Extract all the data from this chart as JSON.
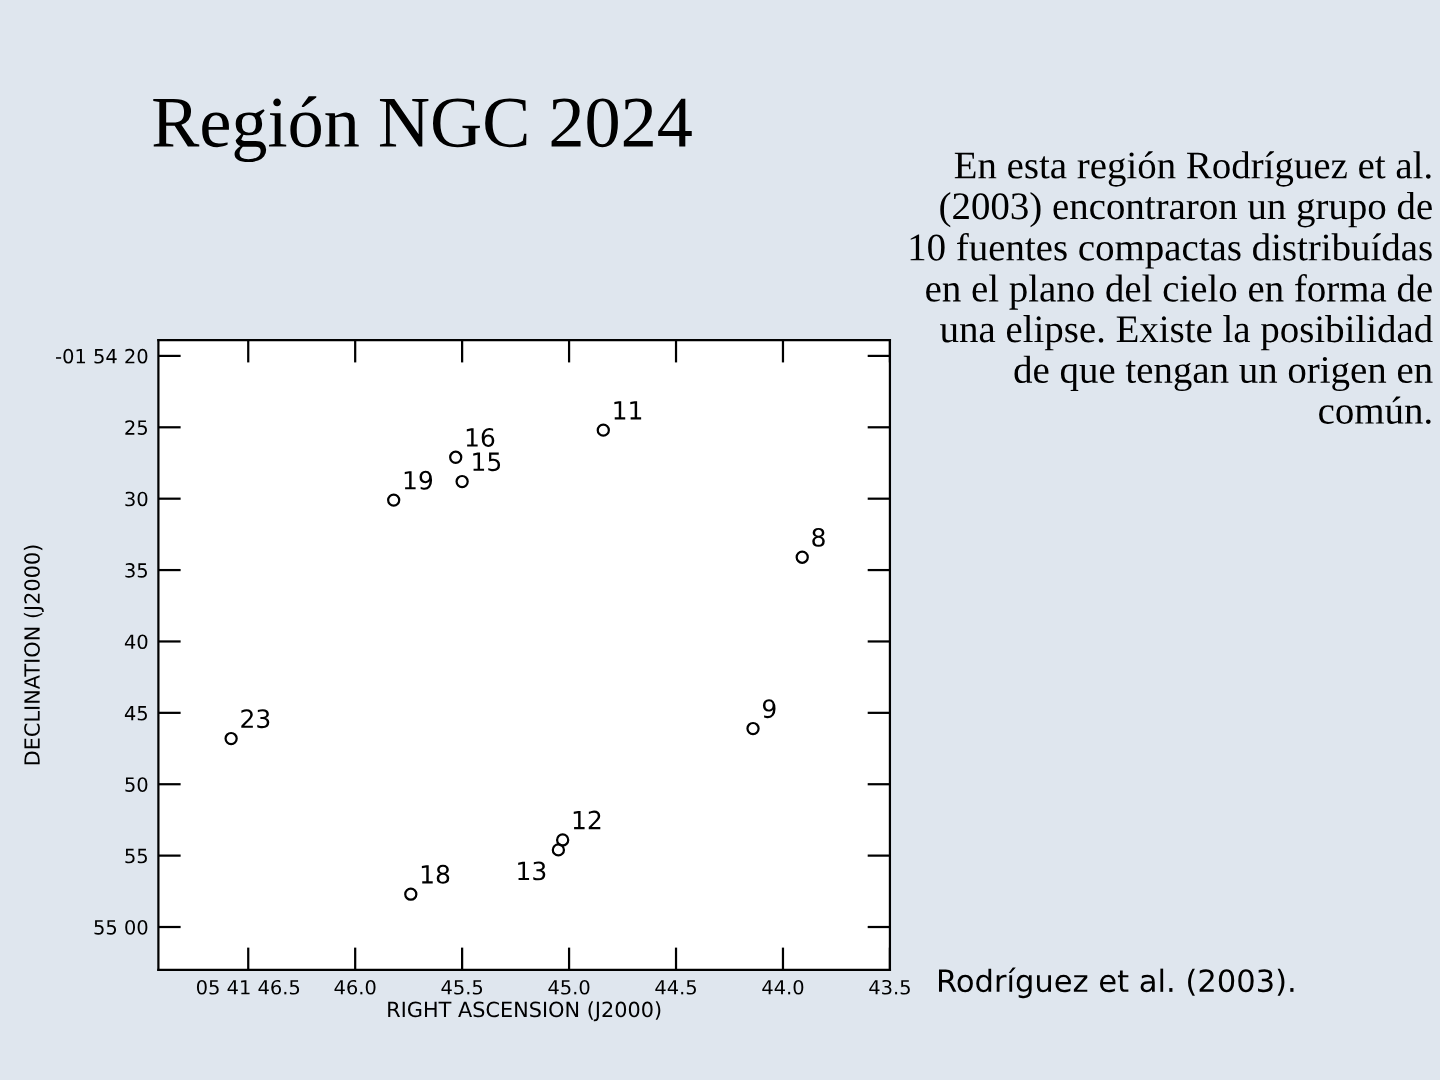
{
  "chart_data": {
    "type": "scatter",
    "title": "Región NGC 2024",
    "xlabel": "RIGHT ASCENSION (J2000)",
    "ylabel": "DECLINATION (J2000)",
    "x": [
      44.84,
      45.53,
      45.5,
      45.82,
      43.91,
      46.58,
      44.14,
      45.03,
      45.05,
      45.74
    ],
    "series": [
      {
        "color": "#000000",
        "values": [
          25.2,
          27.1,
          28.8,
          30.1,
          34.1,
          46.8,
          46.1,
          53.9,
          54.6,
          57.7
        ]
      }
    ],
    "marker": "circle",
    "xlim": [
      46.92,
      43.5
    ],
    "ylim": [
      63.0,
      18.9
    ],
    "xticks": [
      {
        "value": 46.5,
        "label": "05 41 46.5"
      },
      {
        "value": 46.0,
        "label": "46.0"
      },
      {
        "value": 45.5,
        "label": "45.5"
      },
      {
        "value": 45.0,
        "label": "45.0"
      },
      {
        "value": 44.5,
        "label": "44.5"
      },
      {
        "value": 44.0,
        "label": "44.0"
      },
      {
        "value": 43.5,
        "label": "43.5"
      }
    ],
    "yticks": [
      {
        "value": 20,
        "label": "-01 54 20"
      },
      25,
      30,
      35,
      40,
      45,
      50,
      55,
      {
        "value": 60,
        "label": "55 00"
      }
    ],
    "grid": false,
    "annotations": [
      {
        "text": "11",
        "x": 44.84,
        "y": 25.2
      },
      {
        "text": "16",
        "x": 45.53,
        "y": 27.1
      },
      {
        "text": "15",
        "x": 45.5,
        "y": 28.8
      },
      {
        "text": "19",
        "x": 45.82,
        "y": 30.1
      },
      {
        "text": "8",
        "x": 43.91,
        "y": 34.1
      },
      {
        "text": "23",
        "x": 46.58,
        "y": 46.8
      },
      {
        "text": "9",
        "x": 44.14,
        "y": 46.1
      },
      {
        "text": "12",
        "x": 45.03,
        "y": 53.9
      },
      {
        "text": "13",
        "x": 45.05,
        "y": 54.6
      },
      {
        "text": "18",
        "x": 45.74,
        "y": 57.7
      },
      "En esta región Rodríguez et al. (2003) encontraron un grupo de 10 fuentes compactas distribuídas en el plano del cielo en forma de una elipse. Existe la posibilidad de que tengan un origen en común.",
      "Rodríguez et al. (2003)."
    ]
  }
}
